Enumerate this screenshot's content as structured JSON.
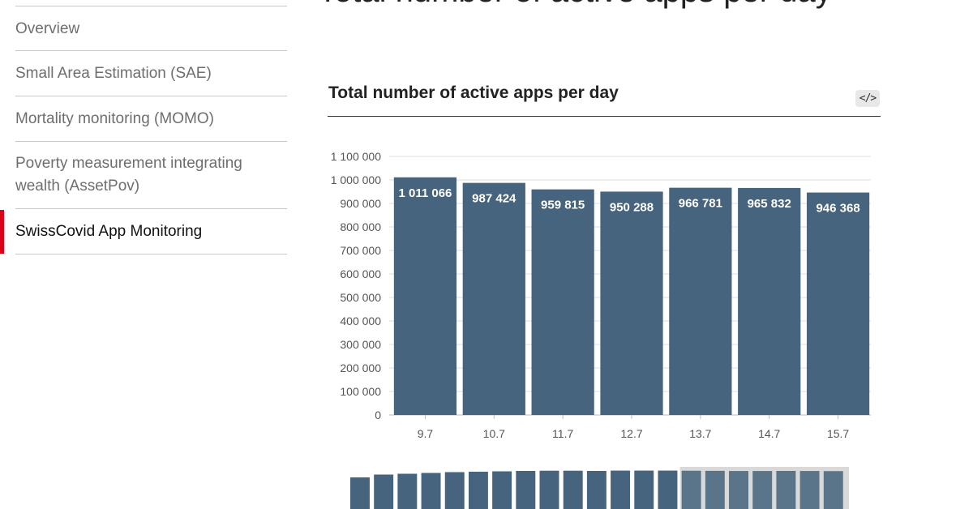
{
  "sidebar": {
    "items": [
      {
        "label": "Overview",
        "active": false
      },
      {
        "label": "Small Area Estimation (SAE)",
        "active": false
      },
      {
        "label": "Mortality monitoring (MOMO)",
        "active": false
      },
      {
        "label": "Poverty measurement integrating wealth (AssetPov)",
        "active": false
      },
      {
        "label": "SwissCovid App Monitoring",
        "active": true
      }
    ]
  },
  "page": {
    "heading": "Total number of active apps per day"
  },
  "chart": {
    "title": "Total number of active apps per day",
    "embed_icon": "code-embed-icon",
    "embed_label": "</>"
  },
  "colors": {
    "bar": "#46647d",
    "accent": "#dc0018",
    "grid": "#dddddd"
  },
  "chart_data": {
    "type": "bar",
    "title": "Total number of active apps per day",
    "xlabel": "",
    "ylabel": "",
    "categories": [
      "9.7",
      "10.7",
      "11.7",
      "12.7",
      "13.7",
      "14.7",
      "15.7"
    ],
    "values": [
      1011066,
      987424,
      959815,
      950288,
      966781,
      965832,
      946368
    ],
    "value_labels": [
      "1 011 066",
      "987 424",
      "959 815",
      "950 288",
      "966 781",
      "965 832",
      "946 368"
    ],
    "ylim": [
      0,
      1100000
    ],
    "yticks": [
      0,
      100000,
      200000,
      300000,
      400000,
      500000,
      600000,
      700000,
      800000,
      900000,
      1000000,
      1100000
    ],
    "ytick_labels": [
      "0",
      "100 000",
      "200 000",
      "300 000",
      "400 000",
      "500 000",
      "600 000",
      "700 000",
      "800 000",
      "900 000",
      "1 000 000",
      "1 100 000"
    ],
    "grid": true,
    "legend": "none",
    "overview_brush": {
      "values": [
        780000,
        850000,
        870000,
        890000,
        910000,
        920000,
        930000,
        940000,
        945000,
        945000,
        940000,
        948000,
        948000,
        948000,
        945000,
        942000,
        938000,
        938000,
        940000,
        938000,
        935000
      ],
      "selected_from_index": 14
    }
  }
}
